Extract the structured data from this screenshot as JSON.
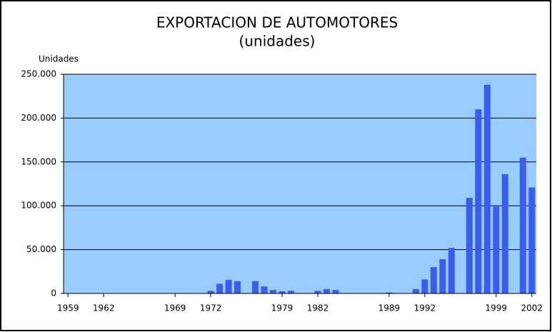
{
  "chart_data": {
    "type": "bar",
    "title": "EXPORTACION DE AUTOMOTORES",
    "subtitle": "(unidades)",
    "y_label": "Unidades",
    "categories": [
      "1959",
      null,
      null,
      null,
      "1962",
      null,
      null,
      null,
      null,
      null,
      null,
      null,
      "1969",
      null,
      null,
      null,
      "1972",
      null,
      null,
      null,
      null,
      null,
      null,
      null,
      "1979",
      null,
      null,
      null,
      "1982",
      null,
      null,
      null,
      null,
      null,
      null,
      null,
      "1989",
      null,
      null,
      null,
      "1992",
      null,
      null,
      null,
      null,
      null,
      null,
      null,
      "1999",
      null,
      null,
      null,
      "2002"
    ],
    "values": [
      0,
      0,
      0,
      0,
      0,
      0,
      0,
      0,
      0,
      0,
      0,
      0,
      0,
      0,
      0,
      0,
      3000,
      11000,
      15500,
      14000,
      0,
      14000,
      8000,
      4000,
      2500,
      3000,
      0,
      0,
      3000,
      5000,
      4000,
      0,
      0,
      0,
      0,
      500,
      1000,
      0,
      0,
      5000,
      16000,
      30000,
      39000,
      52000,
      0,
      109000,
      210000,
      238000,
      99000,
      136000,
      0,
      155000,
      121000
    ],
    "color": "#3a5cf0",
    "plot_background": "#99ccff",
    "ylim": [
      0,
      250000
    ],
    "yticks": [
      0,
      {
        "value": 50000,
        "label": "50.000"
      },
      {
        "value": 100000,
        "label": "100.000"
      },
      {
        "value": 150000,
        "label": "150.000"
      },
      {
        "value": 200000,
        "label": "200.000"
      },
      {
        "value": 250000,
        "label": "250.000"
      }
    ],
    "grid": true
  }
}
